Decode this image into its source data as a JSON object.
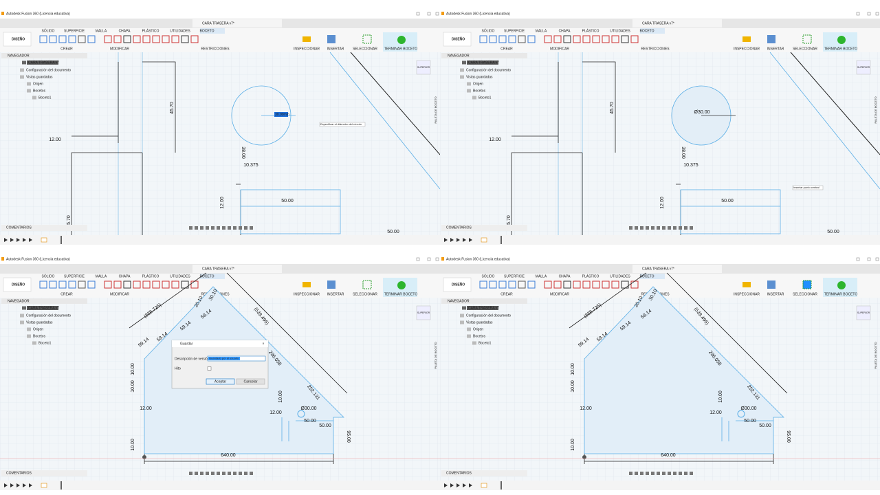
{
  "app": {
    "window_title": "Autodesk Fusion 360 (Licencia educativa)",
    "file_tab": "CARA TRASERA v7*",
    "workspace": "DISEÑO",
    "tabs": [
      "SÓLIDO",
      "SUPERFICIE",
      "MALLA",
      "CHAPA",
      "PLÁSTICO",
      "UTILIDADES",
      "BOCETO"
    ],
    "groups": [
      "CREAR",
      "MODIFICAR",
      "RESTRICCIONES",
      "INSPECCIONAR",
      "INSERTAR",
      "SELECCIONAR",
      "TERMINAR BOCETO"
    ],
    "navigator": {
      "title": "NAVEGADOR",
      "items": [
        "CARA TRASERA v7",
        "Configuración del documento",
        "Vistas guardadas",
        "Origen",
        "Bocetos",
        "Boceto1"
      ]
    },
    "comments": "COMENTARIOS",
    "palette": "PALETA DE BOCETO",
    "view_cube": "SUPERIOR"
  },
  "panes": [
    {
      "dimensions": [
        "45.70",
        "12.00",
        "38.00",
        "10.375",
        "12.00",
        "50.00",
        "5.70",
        "50.00"
      ],
      "input": "30.00mm",
      "tooltip": "Especificar el diámetro del círculo"
    },
    {
      "dimensions": [
        "45.70",
        "Ø30.00",
        "12.00",
        "38.00",
        "10.375",
        "12.00",
        "50.00",
        "5.70",
        "50.00"
      ],
      "tooltip": "Insertar punto central"
    },
    {
      "dimensions": [
        "(336.725)",
        "(539.495)",
        "59.14",
        "59.14",
        "59.14",
        "59.14",
        "20.10",
        "30.10",
        "296.058",
        "252.131",
        "10.00",
        "10.00",
        "12.00",
        "12.00",
        "10.00",
        "Ø30.00",
        "50.00",
        "50.00",
        "640.00",
        "95.00",
        "10.00"
      ],
      "dialog": {
        "title": "Guardar",
        "fields": [
          {
            "label": "Descripción de versión",
            "value": "Guardado por el usuario"
          },
          {
            "label": "Hito"
          }
        ],
        "buttons": [
          "Aceptar",
          "Cancelar"
        ]
      }
    },
    {
      "dimensions": [
        "(336.725)",
        "(539.495)",
        "59.14",
        "59.14",
        "59.14",
        "59.14",
        "20.10",
        "30.10",
        "296.058",
        "252.131",
        "10.00",
        "10.00",
        "12.00",
        "12.00",
        "10.00",
        "Ø30.00",
        "50.00",
        "50.00",
        "640.00",
        "95.00",
        "10.00"
      ]
    }
  ]
}
